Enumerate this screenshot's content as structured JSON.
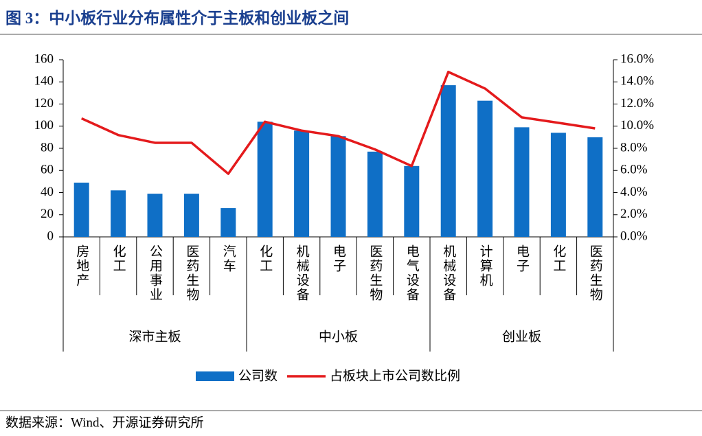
{
  "chart_data": {
    "type": "bar-line",
    "title": "图 3：中小板行业分布属性介于主板和创业板之间",
    "groups": [
      {
        "label": "深市主板",
        "categories": [
          "房地产",
          "化工",
          "公用事业",
          "医药生物",
          "汽车"
        ]
      },
      {
        "label": "中小板",
        "categories": [
          "化工",
          "机械设备",
          "电子",
          "医药生物",
          "电气设备"
        ]
      },
      {
        "label": "创业板",
        "categories": [
          "机械设备",
          "计算机",
          "电子",
          "化工",
          "医药生物"
        ]
      }
    ],
    "series": [
      {
        "name": "公司数",
        "type": "bar",
        "color": "#0f6fc6",
        "values": [
          49,
          42,
          39,
          39,
          26,
          104,
          96,
          91,
          77,
          64,
          137,
          123,
          99,
          94,
          90
        ]
      },
      {
        "name": "占板块上市公司数比例",
        "type": "line",
        "axis": "y2",
        "color": "#e41a1c",
        "values": [
          10.7,
          9.2,
          8.5,
          8.5,
          5.7,
          10.4,
          9.6,
          9.1,
          7.9,
          6.4,
          14.9,
          13.4,
          10.8,
          10.3,
          9.8
        ]
      }
    ],
    "ylim": [
      0,
      160
    ],
    "yticks": [
      0,
      20,
      40,
      60,
      80,
      100,
      120,
      140,
      160
    ],
    "y2lim": [
      0,
      16
    ],
    "y2ticks": [
      {
        "value": 0,
        "label": "0.0%"
      },
      {
        "value": 2,
        "label": "2.0%"
      },
      {
        "value": 4,
        "label": "4.0%"
      },
      {
        "value": 6,
        "label": "6.0%"
      },
      {
        "value": 8,
        "label": "8.0%"
      },
      {
        "value": 10,
        "label": "10.0%"
      },
      {
        "value": 12,
        "label": "12.0%"
      },
      {
        "value": 14,
        "label": "14.0%"
      },
      {
        "value": 16,
        "label": "16.0%"
      }
    ],
    "source": "数据来源：Wind、开源证券研究所"
  }
}
